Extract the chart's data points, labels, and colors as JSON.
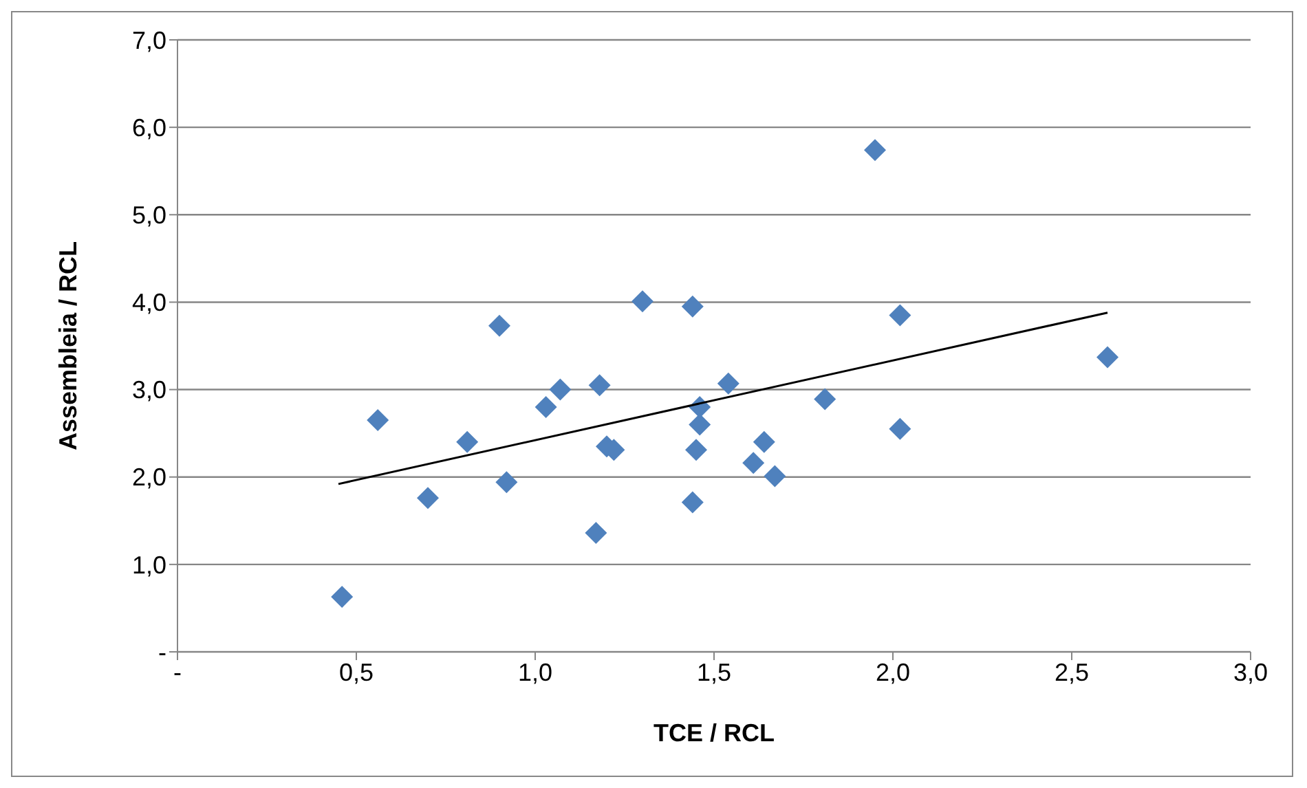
{
  "chart_data": {
    "type": "scatter",
    "xlabel": "TCE / RCL",
    "ylabel": "Assembleia / RCL",
    "xlim": [
      0,
      3
    ],
    "ylim": [
      0,
      7
    ],
    "xticks": [
      {
        "value": 0,
        "label": "-"
      },
      {
        "value": 0.5,
        "label": "0,5"
      },
      {
        "value": 1,
        "label": "1,0"
      },
      {
        "value": 1.5,
        "label": "1,5"
      },
      {
        "value": 2,
        "label": "2,0"
      },
      {
        "value": 2.5,
        "label": "2,5"
      },
      {
        "value": 3,
        "label": "3,0"
      }
    ],
    "yticks": [
      {
        "value": 0,
        "label": "-"
      },
      {
        "value": 1,
        "label": "1,0"
      },
      {
        "value": 2,
        "label": "2,0"
      },
      {
        "value": 3,
        "label": "3,0"
      },
      {
        "value": 4,
        "label": "4,0"
      },
      {
        "value": 5,
        "label": "5,0"
      },
      {
        "value": 6,
        "label": "6,0"
      },
      {
        "value": 7,
        "label": "7,0"
      }
    ],
    "grid": "y",
    "legend": false,
    "series": [
      {
        "marker": "diamond",
        "color": "#4f81bd",
        "x": [
          0.46,
          0.56,
          0.7,
          0.81,
          0.9,
          0.92,
          1.03,
          1.07,
          1.17,
          1.18,
          1.2,
          1.22,
          1.3,
          1.44,
          1.44,
          1.45,
          1.46,
          1.46,
          1.54,
          1.61,
          1.64,
          1.67,
          1.81,
          1.95,
          2.02,
          2.02,
          2.6
        ],
        "values": [
          0.63,
          2.65,
          1.76,
          2.4,
          3.73,
          1.94,
          2.8,
          3.0,
          1.36,
          3.05,
          2.35,
          2.31,
          4.01,
          3.95,
          1.71,
          2.31,
          2.6,
          2.8,
          3.07,
          2.16,
          2.4,
          2.01,
          2.89,
          5.74,
          2.55,
          3.85,
          3.37
        ]
      },
      {
        "type": "line",
        "color": "#000000",
        "x": [
          0.45,
          2.6
        ],
        "values": [
          1.92,
          3.88
        ]
      }
    ]
  }
}
